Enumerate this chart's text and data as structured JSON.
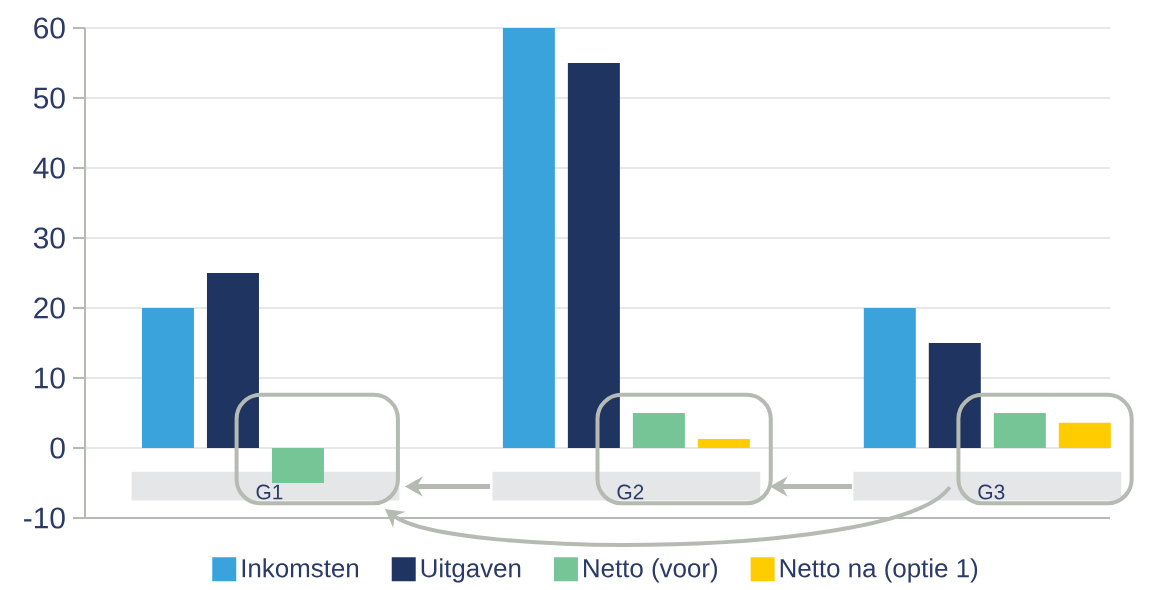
{
  "chart_data": {
    "type": "bar",
    "categories": [
      "G1",
      "G2",
      "G3"
    ],
    "series": [
      {
        "name": "Inkomsten",
        "color": "#3aa3dc",
        "values": [
          20,
          60,
          20
        ]
      },
      {
        "name": "Uitgaven",
        "color": "#1f3461",
        "values": [
          25,
          55,
          15
        ]
      },
      {
        "name": "Netto (voor)",
        "color": "#76c596",
        "values": [
          -5,
          5,
          5
        ]
      },
      {
        "name": "Netto na (optie 1)",
        "color": "#ffcc00",
        "values": [
          null,
          1.3,
          3.6
        ]
      }
    ],
    "ylim": [
      -10,
      60
    ],
    "yticks": [
      -10,
      0,
      10,
      20,
      30,
      40,
      50,
      60
    ],
    "grid": "y",
    "legend": "bottom"
  }
}
